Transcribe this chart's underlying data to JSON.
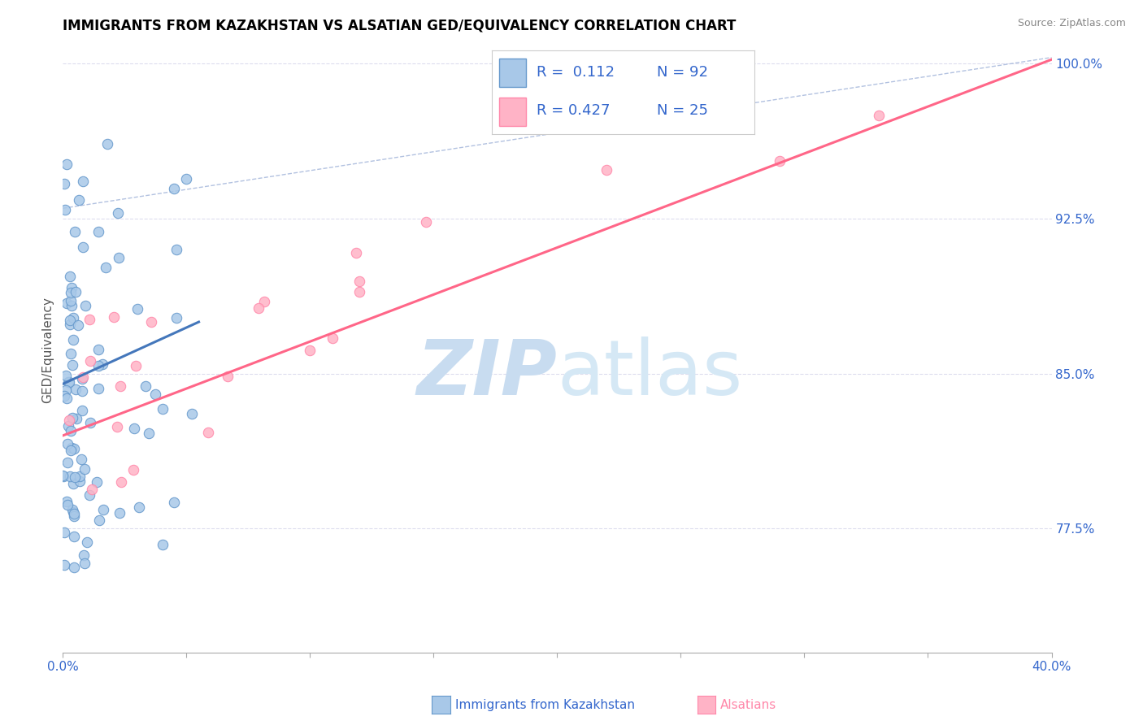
{
  "title": "IMMIGRANTS FROM KAZAKHSTAN VS ALSATIAN GED/EQUIVALENCY CORRELATION CHART",
  "source": "Source: ZipAtlas.com",
  "xlabel_blue": "Immigrants from Kazakhstan",
  "xlabel_pink": "Alsatians",
  "ylabel": "GED/Equivalency",
  "xlim": [
    0.0,
    0.4
  ],
  "ylim": [
    0.715,
    1.008
  ],
  "xticks": [
    0.0,
    0.05,
    0.1,
    0.15,
    0.2,
    0.25,
    0.3,
    0.35,
    0.4
  ],
  "xtick_labels_show": [
    "0.0%",
    "",
    "",
    "",
    "",
    "",
    "",
    "",
    "40.0%"
  ],
  "yticks": [
    0.775,
    0.85,
    0.925,
    1.0
  ],
  "ytick_labels": [
    "77.5%",
    "85.0%",
    "92.5%",
    "100.0%"
  ],
  "R_blue": 0.112,
  "N_blue": 92,
  "R_pink": 0.427,
  "N_pink": 25,
  "blue_fill": "#A8C8E8",
  "blue_edge": "#6699CC",
  "pink_fill": "#FFB3C6",
  "pink_edge": "#FF88AA",
  "blue_line": "#4477BB",
  "pink_line": "#FF6688",
  "ref_line_color": "#AABBDD",
  "ref_line_style": "--",
  "legend_text_color": "#3366CC",
  "grid_color": "#DDDDEE",
  "watermark_zip_color": "#C8DCF0",
  "watermark_atlas_color": "#D5E8F5",
  "pink_line_x0": 0.0,
  "pink_line_x1": 0.4,
  "pink_line_y0": 0.82,
  "pink_line_y1": 1.002,
  "blue_line_x0": 0.0,
  "blue_line_x1": 0.055,
  "blue_line_y0": 0.845,
  "blue_line_y1": 0.875
}
